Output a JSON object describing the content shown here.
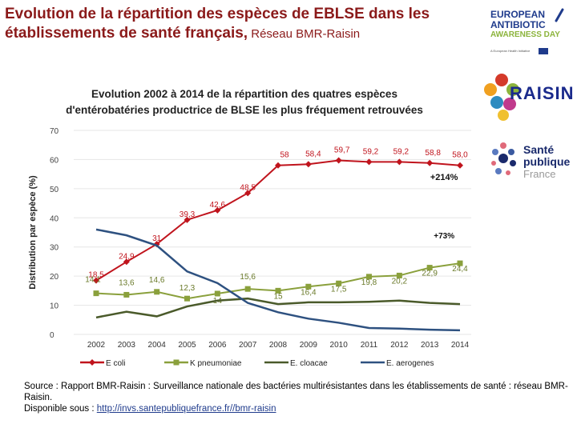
{
  "slide": {
    "title_main": "Evolution de la répartition des espèces de EBLSE dans les établissements de santé français,",
    "title_sub": " Réseau BMR-Raisin"
  },
  "logos": {
    "eaad_lines": [
      "EUROPEAN",
      "ANTIBIOTIC",
      "AWARENESS DAY"
    ],
    "eaad_small": "A European Health Initiative",
    "raisin": "RAISIN",
    "spf_lines": [
      "Santé",
      "publique",
      "France"
    ]
  },
  "chart_data": {
    "type": "line",
    "title_lines": [
      "Evolution 2002 à 2014 de la répartition des quatres espèces",
      "d'entérobatéries productrice de BLSE les plus fréquement retrouvées"
    ],
    "xlabel": "",
    "ylabel": "Distribution par espèce (%)",
    "ylim": [
      0,
      70
    ],
    "yticks": [
      0,
      10,
      20,
      30,
      40,
      50,
      60,
      70
    ],
    "x": [
      "2002",
      "2003",
      "2004",
      "2005",
      "2006",
      "2007",
      "2008",
      "2009",
      "2010",
      "2011",
      "2012",
      "2013",
      "2014"
    ],
    "series": [
      {
        "name": "E coli",
        "color": "#c0141d",
        "marker": "diamond",
        "values": [
          18.5,
          24.9,
          31,
          39.3,
          42.6,
          48.5,
          58,
          58.4,
          59.7,
          59.2,
          59.2,
          58.8,
          58.0
        ],
        "labels": [
          "18,5",
          "24,9",
          "31",
          "39,3",
          "42,6",
          "48,5",
          "58",
          "58,4",
          "59,7",
          "59,2",
          "59,2",
          "58,8",
          "58,0"
        ]
      },
      {
        "name": "K pneumoniae",
        "color": "#8aa03c",
        "marker": "square",
        "values": [
          14.1,
          13.6,
          14.6,
          12.3,
          14.0,
          15.6,
          15.0,
          16.4,
          17.5,
          19.8,
          20.2,
          22.9,
          24.4
        ],
        "labels": [
          "14,1",
          "13,6",
          "14,6",
          "12,3",
          "14",
          "15,6",
          "15",
          "16,4",
          "17,5",
          "19,8",
          "20,2",
          "22,9",
          "24,4"
        ]
      },
      {
        "name": "E. cloacae",
        "color": "#4a5a2a",
        "marker": "none",
        "values": [
          5.8,
          7.8,
          6.2,
          9.6,
          11.6,
          12.3,
          10.4,
          11.0,
          11.0,
          11.2,
          11.6,
          10.8,
          10.4
        ],
        "labels": []
      },
      {
        "name": "E. aerogenes",
        "color": "#2e5180",
        "marker": "none",
        "values": [
          36,
          34,
          30.5,
          21.6,
          17.6,
          10.8,
          7.6,
          5.4,
          4.0,
          2.2,
          2.0,
          1.6,
          1.4
        ],
        "labels": []
      }
    ],
    "annotations": [
      "+214%",
      "+73%"
    ]
  },
  "source": {
    "line1": "Source : Rapport BMR-Raisin : Surveillance nationale des bactéries multirésistantes dans les établissements de santé : réseau BMR-Raisin.",
    "line2_prefix": "Disponible sous : ",
    "link": "http://invs.santepubliquefrance.fr//bmr-raisin"
  }
}
